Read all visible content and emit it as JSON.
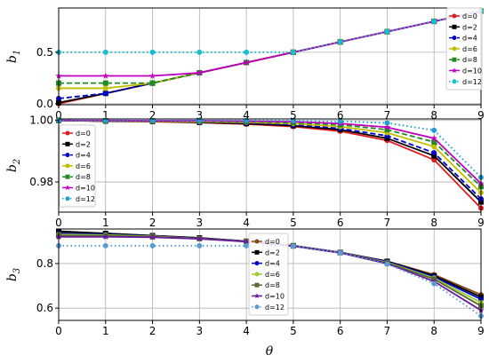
{
  "figure": {
    "xlabel": "θ",
    "xticks": [
      "0",
      "1",
      "2",
      "3",
      "4",
      "5",
      "6",
      "7",
      "8",
      "9"
    ]
  },
  "chart_data": [
    {
      "type": "line",
      "ylabel_main": "b",
      "ylabel_sub": "1",
      "x": [
        0,
        1,
        2,
        3,
        4,
        5,
        6,
        7,
        8,
        9
      ],
      "xlim": [
        0,
        9
      ],
      "ylim": [
        -0.01,
        0.93
      ],
      "yticks": [
        0.0,
        0.5
      ],
      "ytick_labels": [
        "0.0",
        "0.5"
      ],
      "grid": true,
      "legend_position": "right",
      "series": [
        {
          "name": "d=0",
          "color": "#e31a1c",
          "marker": "circle",
          "dash": "solid",
          "values": [
            0.0,
            0.1,
            0.2,
            0.3,
            0.4,
            0.5,
            0.6,
            0.7,
            0.8,
            0.9
          ]
        },
        {
          "name": "d=2",
          "color": "#000000",
          "marker": "square",
          "dash": "solid",
          "values": [
            0.01,
            0.1,
            0.2,
            0.3,
            0.4,
            0.5,
            0.6,
            0.7,
            0.8,
            0.9
          ]
        },
        {
          "name": "d=4",
          "color": "#0000cc",
          "marker": "circle",
          "dash": "dashed",
          "values": [
            0.05,
            0.1,
            0.2,
            0.3,
            0.4,
            0.5,
            0.6,
            0.7,
            0.8,
            0.9
          ]
        },
        {
          "name": "d=6",
          "color": "#bfbf00",
          "marker": "circle",
          "dash": "solid",
          "values": [
            0.15,
            0.15,
            0.2,
            0.3,
            0.4,
            0.5,
            0.6,
            0.7,
            0.8,
            0.9
          ]
        },
        {
          "name": "d=8",
          "color": "#228b22",
          "marker": "square",
          "dash": "dashed",
          "values": [
            0.2,
            0.2,
            0.2,
            0.3,
            0.4,
            0.5,
            0.6,
            0.7,
            0.8,
            0.9
          ]
        },
        {
          "name": "d=10",
          "color": "#bf00bf",
          "marker": "star",
          "dash": "solid",
          "values": [
            0.27,
            0.27,
            0.27,
            0.3,
            0.4,
            0.5,
            0.6,
            0.7,
            0.8,
            0.9
          ]
        },
        {
          "name": "d=12",
          "color": "#17becf",
          "marker": "circle",
          "dash": "dotted",
          "values": [
            0.5,
            0.5,
            0.5,
            0.5,
            0.5,
            0.5,
            0.6,
            0.7,
            0.8,
            0.9
          ]
        }
      ]
    },
    {
      "type": "line",
      "ylabel_main": "b",
      "ylabel_sub": "2",
      "x": [
        0,
        1,
        2,
        3,
        4,
        5,
        6,
        7,
        8,
        9
      ],
      "xlim": [
        0,
        9
      ],
      "ylim": [
        0.9702,
        1.0005
      ],
      "yticks": [
        0.98,
        1.0
      ],
      "ytick_labels": [
        "0.98",
        "1.00"
      ],
      "grid": true,
      "legend_position": "left",
      "series": [
        {
          "name": "d=0",
          "color": "#e31a1c",
          "marker": "circle",
          "dash": "solid",
          "values": [
            1.0,
            0.9998,
            0.9996,
            0.9993,
            0.9988,
            0.998,
            0.9965,
            0.9935,
            0.9872,
            0.9715
          ]
        },
        {
          "name": "d=2",
          "color": "#000000",
          "marker": "square",
          "dash": "solid",
          "values": [
            1.0,
            0.9998,
            0.9997,
            0.9994,
            0.999,
            0.9983,
            0.997,
            0.9942,
            0.9885,
            0.9735
          ]
        },
        {
          "name": "d=4",
          "color": "#0000cc",
          "marker": "circle",
          "dash": "dashed",
          "values": [
            1.0,
            0.9999,
            0.9998,
            0.9995,
            0.9992,
            0.9986,
            0.9974,
            0.995,
            0.9895,
            0.9745
          ]
        },
        {
          "name": "d=6",
          "color": "#bfbf00",
          "marker": "circle",
          "dash": "solid",
          "values": [
            1.0,
            0.9999,
            0.9998,
            0.9996,
            0.9994,
            0.999,
            0.998,
            0.996,
            0.9915,
            0.9765
          ]
        },
        {
          "name": "d=8",
          "color": "#228b22",
          "marker": "square",
          "dash": "dashed",
          "values": [
            1.0,
            0.9999,
            0.9999,
            0.9998,
            0.9996,
            0.9993,
            0.9986,
            0.997,
            0.993,
            0.9785
          ]
        },
        {
          "name": "d=10",
          "color": "#bf00bf",
          "marker": "star",
          "dash": "solid",
          "values": [
            1.0,
            1.0,
            0.9999,
            0.9999,
            0.9998,
            0.9996,
            0.999,
            0.9978,
            0.9942,
            0.9795
          ]
        },
        {
          "name": "d=12",
          "color": "#1f9fd0",
          "marker": "circle",
          "dash": "dotted",
          "values": [
            1.0,
            1.0,
            1.0,
            1.0,
            1.0,
            0.9999,
            0.9997,
            0.9992,
            0.9968,
            0.9815
          ]
        }
      ]
    },
    {
      "type": "line",
      "ylabel_main": "b",
      "ylabel_sub": "3",
      "x": [
        0,
        1,
        2,
        3,
        4,
        5,
        6,
        7,
        8,
        9
      ],
      "xlim": [
        0,
        9
      ],
      "ylim": [
        0.545,
        0.955
      ],
      "yticks": [
        0.6,
        0.8
      ],
      "ytick_labels": [
        "0.6",
        "0.8"
      ],
      "grid": true,
      "legend_position": "center",
      "series": [
        {
          "name": "d=0",
          "color": "#8b4513",
          "marker": "circle",
          "dash": "solid",
          "values": [
            0.94,
            0.935,
            0.925,
            0.915,
            0.9,
            0.88,
            0.85,
            0.81,
            0.75,
            0.66
          ]
        },
        {
          "name": "d=2",
          "color": "#000000",
          "marker": "square",
          "dash": "solid",
          "values": [
            0.945,
            0.935,
            0.925,
            0.915,
            0.9,
            0.88,
            0.85,
            0.81,
            0.745,
            0.65
          ]
        },
        {
          "name": "d=4",
          "color": "#0000cc",
          "marker": "circle",
          "dash": "solid",
          "values": [
            0.935,
            0.93,
            0.923,
            0.913,
            0.9,
            0.88,
            0.85,
            0.808,
            0.74,
            0.64
          ]
        },
        {
          "name": "d=6",
          "color": "#9acd32",
          "marker": "circle",
          "dash": "solid",
          "values": [
            0.93,
            0.928,
            0.922,
            0.912,
            0.899,
            0.879,
            0.849,
            0.805,
            0.735,
            0.625
          ]
        },
        {
          "name": "d=8",
          "color": "#556b2f",
          "marker": "square",
          "dash": "solid",
          "values": [
            0.925,
            0.925,
            0.92,
            0.912,
            0.899,
            0.879,
            0.849,
            0.803,
            0.73,
            0.61
          ]
        },
        {
          "name": "d=10",
          "color": "#6a1b9a",
          "marker": "star",
          "dash": "solid",
          "values": [
            0.92,
            0.92,
            0.918,
            0.911,
            0.898,
            0.878,
            0.848,
            0.8,
            0.72,
            0.59
          ]
        },
        {
          "name": "d=12",
          "color": "#5b9bd5",
          "marker": "circle",
          "dash": "dotted",
          "values": [
            0.88,
            0.88,
            0.88,
            0.88,
            0.88,
            0.878,
            0.848,
            0.798,
            0.71,
            0.565
          ]
        }
      ]
    }
  ]
}
